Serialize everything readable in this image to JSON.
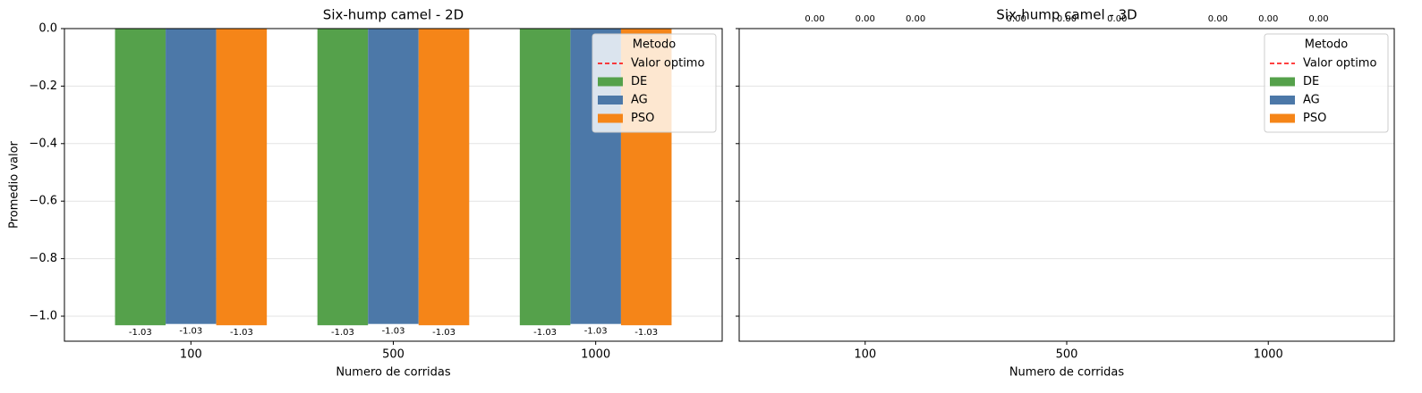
{
  "chart_data": [
    {
      "type": "bar",
      "title": "Six-hump camel - 2D",
      "xlabel": "Numero de corridas",
      "ylabel": "Promedio valor",
      "categories": [
        "100",
        "500",
        "1000"
      ],
      "series": [
        {
          "name": "DE",
          "color": "#55a14b",
          "values": [
            -1.0316,
            -1.0316,
            -1.0316
          ],
          "value_labels": [
            "-1.03",
            "-1.03",
            "-1.03"
          ]
        },
        {
          "name": "AG",
          "color": "#4c78a8",
          "values": [
            -1.027,
            -1.027,
            -1.027
          ],
          "value_labels": [
            "-1.03",
            "-1.03",
            "-1.03"
          ]
        },
        {
          "name": "PSO",
          "color": "#f58518",
          "values": [
            -1.0316,
            -1.0316,
            -1.0316
          ],
          "value_labels": [
            "-1.03",
            "-1.03",
            "-1.03"
          ]
        }
      ],
      "reference_lines": [
        {
          "name": "Valor optimo",
          "color": "red",
          "style": "dashed"
        }
      ],
      "legend": {
        "title": "Metodo",
        "position": "upper right"
      },
      "ylim": [
        -1.087,
        0
      ],
      "yticks": [
        {
          "value": 0,
          "label": "0.0"
        },
        {
          "value": -0.2,
          "label": "−0.2"
        },
        {
          "value": -0.4,
          "label": "−0.4"
        },
        {
          "value": -0.6,
          "label": "−0.6"
        },
        {
          "value": -0.8,
          "label": "−0.8"
        },
        {
          "value": -1.0,
          "label": "−1.0"
        }
      ],
      "ytick_labels": true,
      "grid": true,
      "value_label_position": "below"
    },
    {
      "type": "bar",
      "title": "Six-hump camel - 3D",
      "xlabel": "Numero de corridas",
      "categories": [
        "100",
        "500",
        "1000"
      ],
      "series": [
        {
          "name": "DE",
          "color": "#55a14b",
          "values": [
            0,
            0,
            0
          ],
          "value_labels": [
            "0.00",
            "0.00",
            "0.00"
          ]
        },
        {
          "name": "AG",
          "color": "#4c78a8",
          "values": [
            0,
            0,
            0
          ],
          "value_labels": [
            "0.00",
            "0.00",
            "0.00"
          ]
        },
        {
          "name": "PSO",
          "color": "#f58518",
          "values": [
            0,
            0,
            0
          ],
          "value_labels": [
            "0.00",
            "0.00",
            "0.00"
          ]
        }
      ],
      "reference_lines": [
        {
          "name": "Valor optimo",
          "color": "red",
          "style": "dashed"
        }
      ],
      "legend": {
        "title": "Metodo",
        "position": "upper right"
      },
      "ylim": [
        -1.087,
        0
      ],
      "yticks": [
        0,
        -0.2,
        -0.4,
        -0.6,
        -0.8,
        -1.0
      ],
      "ytick_labels": false,
      "grid": true,
      "value_label_position": "above"
    }
  ]
}
